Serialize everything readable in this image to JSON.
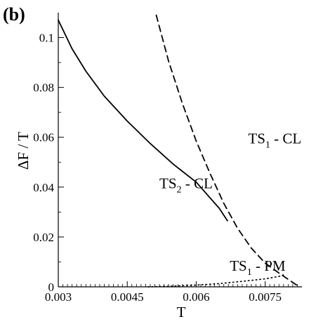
{
  "chart_data": {
    "type": "line",
    "panel_label": "(b)",
    "xlabel": "T",
    "ylabel": "ΔF / T",
    "xlim": [
      0.003,
      0.0083
    ],
    "ylim": [
      0,
      0.11
    ],
    "x_ticks": [
      {
        "value": 0.003,
        "label": "0.003"
      },
      {
        "value": 0.0045,
        "label": "0.0045"
      },
      {
        "value": 0.006,
        "label": "0.006"
      },
      {
        "value": 0.0075,
        "label": "0.0075"
      }
    ],
    "y_ticks": [
      {
        "value": 0,
        "label": "0"
      },
      {
        "value": 0.02,
        "label": "0.02"
      },
      {
        "value": 0.04,
        "label": "0.04"
      },
      {
        "value": 0.06,
        "label": "0.06"
      },
      {
        "value": 0.08,
        "label": "0.08"
      },
      {
        "value": 0.1,
        "label": "0.1"
      }
    ],
    "grid": false,
    "series": [
      {
        "style": "solid",
        "x": [
          0.003,
          0.0033,
          0.0036,
          0.004,
          0.0045,
          0.005,
          0.0055,
          0.006,
          0.0065,
          0.00668
        ],
        "y": [
          0.107,
          0.0955,
          0.0865,
          0.0765,
          0.0665,
          0.0575,
          0.0492,
          0.042,
          0.0315,
          0.0265
        ]
      },
      {
        "style": "dashed",
        "x": [
          0.00513,
          0.0054,
          0.0057,
          0.006,
          0.0063,
          0.0066,
          0.0069,
          0.0072,
          0.0075,
          0.0078,
          0.008,
          0.0082
        ],
        "y": [
          0.109,
          0.0905,
          0.0735,
          0.0585,
          0.0455,
          0.0335,
          0.0235,
          0.0155,
          0.0095,
          0.0055,
          0.003,
          0.0005
        ]
      },
      {
        "style": "dotted",
        "x": [
          0.00495,
          0.0055,
          0.006,
          0.0065,
          0.007,
          0.0075,
          0.0078,
          0.0079
        ],
        "y": [
          0.0,
          0.0003,
          0.0007,
          0.0013,
          0.0022,
          0.0032,
          0.0042,
          0.0048
        ]
      }
    ],
    "annotations": [
      {
        "main": "TS",
        "sub": "1",
        "suffix": " - CL",
        "x": 0.00713,
        "y": 0.0575
      },
      {
        "main": "TS",
        "sub": "2",
        "suffix": " - CL",
        "x": 0.0052,
        "y": 0.0395
      },
      {
        "main": "TS",
        "sub": "1",
        "suffix": " - PM",
        "x": 0.00673,
        "y": 0.0065
      }
    ]
  }
}
